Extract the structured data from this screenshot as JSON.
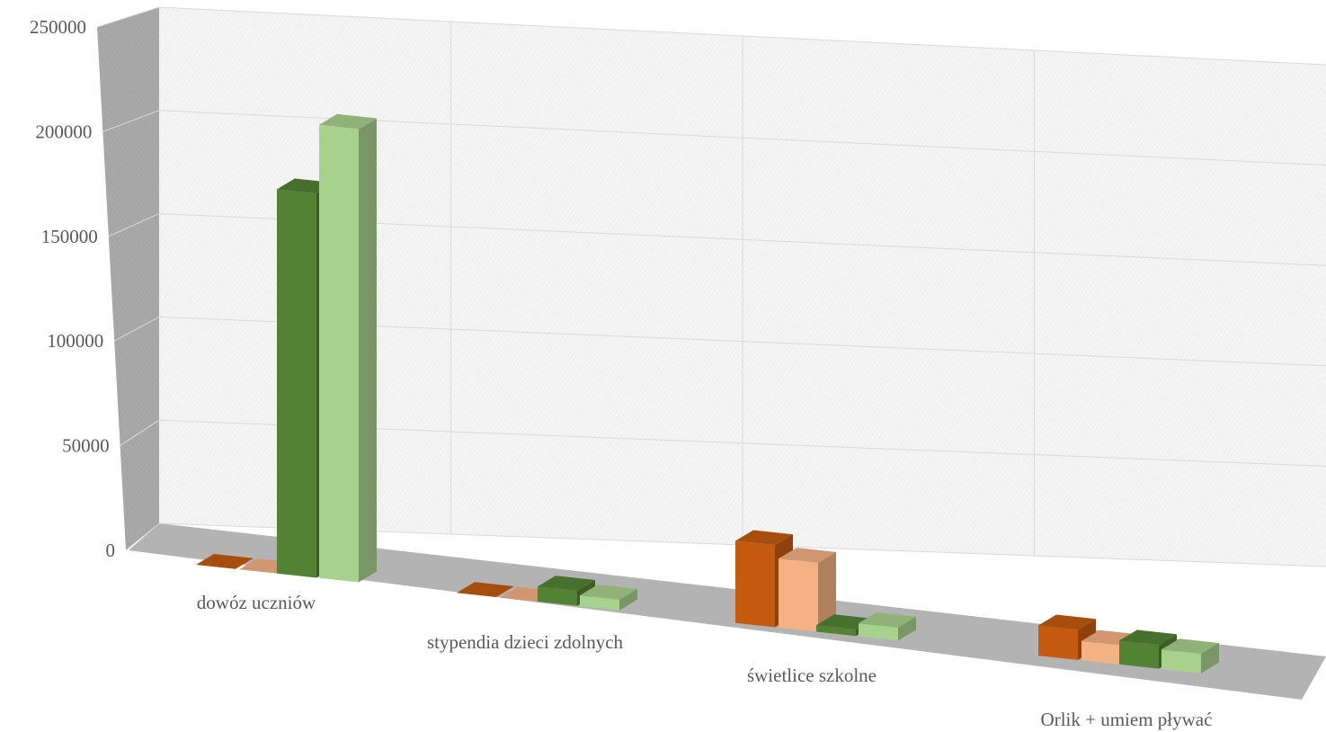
{
  "chart_data": {
    "type": "bar",
    "three_d": true,
    "title": "",
    "xlabel": "",
    "ylabel": "",
    "categories": [
      "dowóz uczniów",
      "stypendia dzieci zdolnych",
      "świetlice szkolne",
      "Orlik + umiem pływać"
    ],
    "series": [
      {
        "color": "#c55a11",
        "values": [
          0,
          0,
          38000,
          14000
        ]
      },
      {
        "color": "#f4b183",
        "values": [
          0,
          0,
          32000,
          9000
        ]
      },
      {
        "color": "#548235",
        "values": [
          178000,
          7000,
          3000,
          11000
        ]
      },
      {
        "color": "#a9d18e",
        "values": [
          210000,
          5000,
          6000,
          9000
        ]
      }
    ],
    "ylim": [
      0,
      250000
    ],
    "yticks": [
      "0",
      "50000",
      "100000",
      "150000",
      "200000",
      "250000"
    ],
    "grid": true,
    "legend": "none"
  }
}
